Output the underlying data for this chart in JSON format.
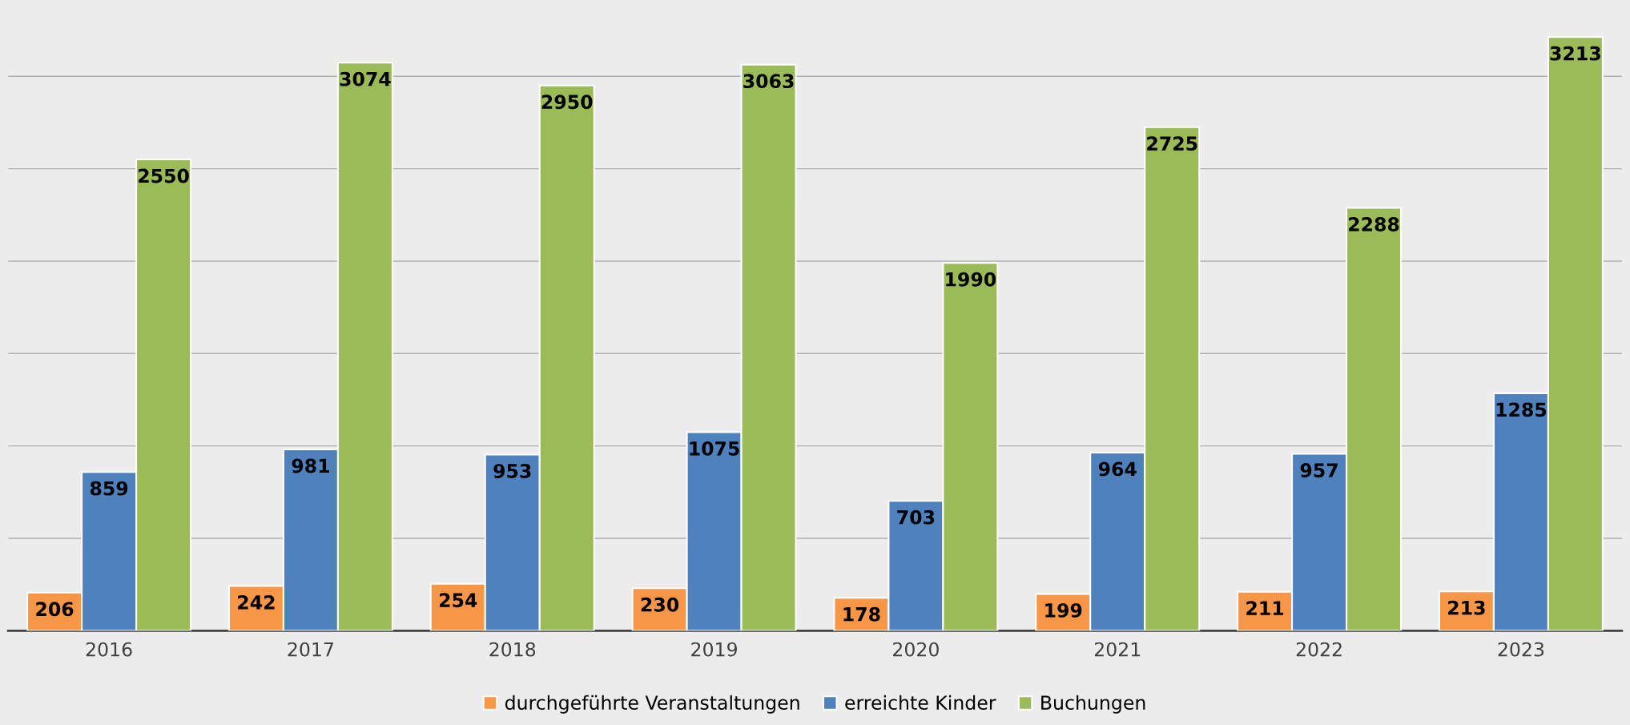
{
  "chart_data": {
    "type": "bar",
    "categories": [
      "2016",
      "2017",
      "2018",
      "2019",
      "2020",
      "2021",
      "2022",
      "2023"
    ],
    "series": [
      {
        "name": "durchgeführte Veranstaltungen",
        "color": "#f79646",
        "values": [
          206,
          242,
          254,
          230,
          178,
          199,
          211,
          213
        ]
      },
      {
        "name": "erreichte Kinder",
        "color": "#4f81bd",
        "values": [
          859,
          981,
          953,
          1075,
          703,
          964,
          957,
          1285
        ]
      },
      {
        "name": "Buchungen",
        "color": "#9bbb59",
        "values": [
          2550,
          3074,
          2950,
          3063,
          1990,
          2725,
          2288,
          3213
        ]
      }
    ],
    "yticks": [
      {
        "value": 0,
        "label": null
      },
      {
        "value": 500,
        "label": null
      },
      {
        "value": 1000,
        "label": null
      },
      {
        "value": 1500,
        "label": null
      },
      {
        "value": 2000,
        "label": null
      },
      {
        "value": 2500,
        "label": null
      },
      {
        "value": 3000,
        "label": null
      }
    ],
    "tick_labels": "x",
    "grid": "y",
    "legend": "bottom",
    "data_labels": true
  }
}
